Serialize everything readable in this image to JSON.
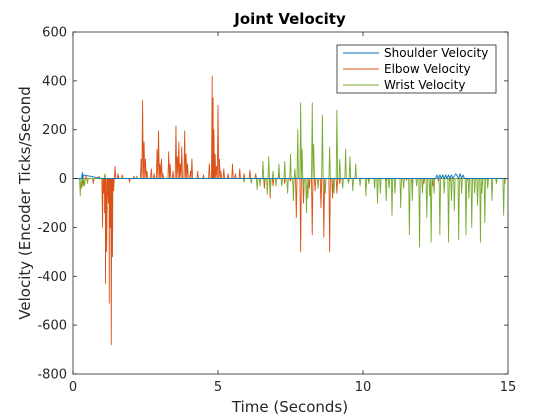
{
  "chart_data": {
    "type": "line",
    "title": "Joint Velocity",
    "xlabel": "Time (Seconds)",
    "ylabel": "Velocity (Encoder Ticks/Second",
    "xlim": [
      0,
      15
    ],
    "ylim": [
      -800,
      600
    ],
    "xticks": [
      0,
      5,
      10,
      15
    ],
    "yticks": [
      -800,
      -600,
      -400,
      -200,
      0,
      200,
      400,
      600
    ],
    "grid": false,
    "legend_position": "top-right",
    "colors": {
      "shoulder": "#0072BD",
      "elbow": "#D95319",
      "wrist": "#77AC30"
    },
    "series": [
      {
        "name": "Shoulder Velocity",
        "color": "#0072BD",
        "x": [
          0.0,
          0.3,
          0.32,
          0.34,
          0.36,
          1.0,
          2.0,
          4.0,
          6.0,
          8.0,
          10.0,
          12.5,
          12.55,
          12.6,
          12.65,
          12.7,
          12.75,
          12.8,
          12.85,
          12.9,
          12.95,
          13.0,
          13.05,
          13.1,
          13.2,
          13.3,
          13.35,
          13.4,
          13.45,
          13.5,
          14.0,
          14.9
        ],
        "values": [
          0,
          0,
          25,
          0,
          15,
          0,
          0,
          0,
          0,
          0,
          0,
          0,
          15,
          0,
          15,
          0,
          15,
          0,
          15,
          0,
          15,
          0,
          15,
          0,
          20,
          0,
          20,
          0,
          15,
          0,
          0,
          0
        ]
      },
      {
        "name": "Elbow Velocity",
        "color": "#D95319",
        "spikes": [
          [
            0.35,
            -30
          ],
          [
            0.45,
            10
          ],
          [
            0.7,
            -20
          ],
          [
            0.9,
            10
          ],
          [
            1.02,
            -200
          ],
          [
            1.06,
            -60
          ],
          [
            1.09,
            -140
          ],
          [
            1.12,
            -430
          ],
          [
            1.16,
            -300
          ],
          [
            1.22,
            -100
          ],
          [
            1.25,
            -510
          ],
          [
            1.28,
            -200
          ],
          [
            1.32,
            -680
          ],
          [
            1.36,
            -320
          ],
          [
            1.4,
            -50
          ],
          [
            1.45,
            50
          ],
          [
            1.55,
            20
          ],
          [
            1.7,
            15
          ],
          [
            1.95,
            -15
          ],
          [
            2.1,
            10
          ],
          [
            2.35,
            80
          ],
          [
            2.4,
            320
          ],
          [
            2.45,
            150
          ],
          [
            2.5,
            80
          ],
          [
            2.55,
            30
          ],
          [
            2.7,
            40
          ],
          [
            2.8,
            20
          ],
          [
            2.9,
            120
          ],
          [
            2.95,
            195
          ],
          [
            3.0,
            60
          ],
          [
            3.05,
            80
          ],
          [
            3.1,
            20
          ],
          [
            3.3,
            110
          ],
          [
            3.35,
            60
          ],
          [
            3.45,
            30
          ],
          [
            3.55,
            215
          ],
          [
            3.6,
            90
          ],
          [
            3.65,
            150
          ],
          [
            3.7,
            60
          ],
          [
            3.75,
            130
          ],
          [
            3.85,
            195
          ],
          [
            3.9,
            100
          ],
          [
            3.95,
            60
          ],
          [
            4.05,
            30
          ],
          [
            4.1,
            80
          ],
          [
            4.3,
            30
          ],
          [
            4.5,
            15
          ],
          [
            4.7,
            60
          ],
          [
            4.8,
            420
          ],
          [
            4.83,
            330
          ],
          [
            4.86,
            200
          ],
          [
            4.9,
            100
          ],
          [
            4.95,
            50
          ],
          [
            5.0,
            300
          ],
          [
            5.05,
            80
          ],
          [
            5.1,
            30
          ],
          [
            5.2,
            40
          ],
          [
            5.35,
            20
          ],
          [
            5.5,
            60
          ],
          [
            5.6,
            20
          ],
          [
            5.75,
            40
          ],
          [
            5.9,
            20
          ],
          [
            6.1,
            35
          ],
          [
            6.3,
            20
          ],
          [
            6.6,
            -40
          ],
          [
            6.8,
            -80
          ],
          [
            6.9,
            -30
          ],
          [
            7.1,
            20
          ],
          [
            7.3,
            -20
          ],
          [
            7.5,
            -10
          ],
          [
            7.7,
            -160
          ],
          [
            7.85,
            -300
          ],
          [
            7.95,
            -100
          ],
          [
            8.15,
            -40
          ],
          [
            8.25,
            -230
          ],
          [
            8.35,
            -50
          ],
          [
            8.55,
            -120
          ],
          [
            8.65,
            -240
          ],
          [
            8.85,
            -300
          ],
          [
            8.95,
            -80
          ],
          [
            9.1,
            -60
          ],
          [
            9.2,
            -20
          ],
          [
            9.5,
            -10
          ],
          [
            10.2,
            -10
          ],
          [
            10.8,
            -8
          ],
          [
            11.5,
            -6
          ],
          [
            11.7,
            -20
          ],
          [
            12.1,
            -20
          ],
          [
            12.4,
            -30
          ],
          [
            12.6,
            -10
          ],
          [
            13.0,
            -8
          ],
          [
            13.6,
            -5
          ],
          [
            14.3,
            -5
          ]
        ]
      },
      {
        "name": "Wrist Velocity",
        "color": "#77AC30",
        "spikes": [
          [
            0.25,
            -70
          ],
          [
            0.3,
            -40
          ],
          [
            0.4,
            -30
          ],
          [
            0.5,
            -20
          ],
          [
            1.1,
            20
          ],
          [
            2.2,
            10
          ],
          [
            5.9,
            -15
          ],
          [
            6.15,
            -20
          ],
          [
            6.35,
            -45
          ],
          [
            6.45,
            -30
          ],
          [
            6.55,
            70
          ],
          [
            6.62,
            -10
          ],
          [
            6.7,
            -65
          ],
          [
            6.75,
            90
          ],
          [
            6.8,
            -60
          ],
          [
            6.9,
            30
          ],
          [
            7.0,
            -30
          ],
          [
            7.1,
            60
          ],
          [
            7.2,
            -30
          ],
          [
            7.3,
            70
          ],
          [
            7.4,
            -60
          ],
          [
            7.5,
            100
          ],
          [
            7.6,
            -90
          ],
          [
            7.65,
            40
          ],
          [
            7.75,
            200
          ],
          [
            7.85,
            310
          ],
          [
            7.9,
            120
          ],
          [
            7.95,
            -40
          ],
          [
            8.05,
            -140
          ],
          [
            8.1,
            -80
          ],
          [
            8.25,
            310
          ],
          [
            8.3,
            140
          ],
          [
            8.45,
            -40
          ],
          [
            8.6,
            260
          ],
          [
            8.7,
            -60
          ],
          [
            8.85,
            130
          ],
          [
            9.0,
            -60
          ],
          [
            9.1,
            280
          ],
          [
            9.2,
            80
          ],
          [
            9.3,
            -40
          ],
          [
            9.4,
            120
          ],
          [
            9.5,
            -20
          ],
          [
            9.55,
            90
          ],
          [
            9.65,
            -50
          ],
          [
            9.75,
            60
          ],
          [
            9.9,
            -30
          ],
          [
            10.1,
            -70
          ],
          [
            10.2,
            -20
          ],
          [
            10.4,
            -40
          ],
          [
            10.5,
            -100
          ],
          [
            10.6,
            -60
          ],
          [
            10.8,
            -90
          ],
          [
            10.9,
            -40
          ],
          [
            11.0,
            -150
          ],
          [
            11.1,
            -60
          ],
          [
            11.3,
            -120
          ],
          [
            11.4,
            -40
          ],
          [
            11.6,
            -230
          ],
          [
            11.7,
            -90
          ],
          [
            11.85,
            -30
          ],
          [
            11.95,
            -280
          ],
          [
            12.05,
            -60
          ],
          [
            12.2,
            -160
          ],
          [
            12.3,
            -70
          ],
          [
            12.35,
            -260
          ],
          [
            12.45,
            -60
          ],
          [
            12.65,
            -230
          ],
          [
            12.8,
            -60
          ],
          [
            12.95,
            -260
          ],
          [
            13.05,
            -90
          ],
          [
            13.15,
            -130
          ],
          [
            13.3,
            -250
          ],
          [
            13.4,
            -60
          ],
          [
            13.55,
            -230
          ],
          [
            13.65,
            -80
          ],
          [
            13.75,
            -200
          ],
          [
            13.85,
            -60
          ],
          [
            13.95,
            -110
          ],
          [
            14.05,
            -260
          ],
          [
            14.1,
            -60
          ],
          [
            14.2,
            -180
          ],
          [
            14.3,
            -40
          ],
          [
            14.45,
            -90
          ],
          [
            14.6,
            -20
          ],
          [
            14.85,
            -150
          ],
          [
            14.9,
            -20
          ]
        ]
      }
    ]
  }
}
